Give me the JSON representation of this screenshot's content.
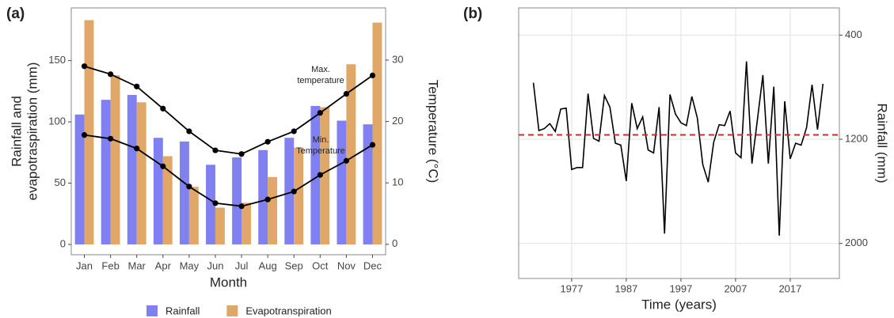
{
  "chart_data": [
    {
      "type": "bar",
      "panel": "(a)",
      "xlabel": "Month",
      "ylabel": [
        "Rainfall and",
        "evapotraspiration (mm)"
      ],
      "y2label": "Temperature (°C)",
      "categories": [
        "Jan",
        "Feb",
        "Mar",
        "Apr",
        "May",
        "Jun",
        "Jul",
        "Aug",
        "Sep",
        "Oct",
        "Nov",
        "Dec"
      ],
      "series": [
        {
          "name": "Rainfall",
          "color": "#8080f0",
          "values": [
            106,
            118,
            122,
            87,
            84,
            65,
            71,
            77,
            87,
            113,
            101,
            98
          ]
        },
        {
          "name": "Evapotranspiration",
          "color": "#e0a868",
          "values": [
            183,
            138,
            116,
            72,
            47,
            30,
            34,
            55,
            79,
            112,
            147,
            181
          ]
        },
        {
          "type": "line",
          "axis": "y2",
          "color": "#000000",
          "values": [
            29.0,
            27.7,
            25.7,
            22.1,
            18.4,
            15.3,
            14.7,
            16.7,
            18.4,
            21.4,
            24.5,
            27.5
          ]
        },
        {
          "type": "line",
          "axis": "y2",
          "color": "#000000",
          "values": [
            17.8,
            17.2,
            15.6,
            12.7,
            9.4,
            6.7,
            6.2,
            7.3,
            8.6,
            11.3,
            13.6,
            16.2
          ]
        }
      ],
      "annotations": [
        [
          "Max.",
          "temperature"
        ],
        [
          "Min.",
          "Temperature"
        ]
      ],
      "ylim": [
        -8.4,
        193
      ],
      "yticks": [
        0,
        50,
        100,
        150
      ],
      "y2lim": [
        -1.7,
        38.5
      ],
      "y2ticks": [
        0,
        10,
        20,
        30
      ],
      "legend": "bottom"
    },
    {
      "type": "line",
      "panel": "(b)",
      "xlabel": "Time (years)",
      "ylabel": "Rainfall (mm)",
      "x": [
        1970,
        1971,
        1972,
        1973,
        1974,
        1975,
        1976,
        1977,
        1978,
        1979,
        1980,
        1981,
        1982,
        1983,
        1984,
        1985,
        1986,
        1987,
        1988,
        1989,
        1990,
        1991,
        1992,
        1993,
        1994,
        1995,
        1996,
        1997,
        1998,
        1999,
        2000,
        2001,
        2002,
        2003,
        2004,
        2005,
        2006,
        2007,
        2008,
        2009,
        2010,
        2011,
        2012,
        2013,
        2014,
        2015,
        2016,
        2017,
        2018,
        2019,
        2020,
        2021,
        2022,
        2023
      ],
      "values": [
        766,
        1133,
        1118,
        1080,
        1140,
        968,
        961,
        1432,
        1417,
        1417,
        849,
        1193,
        1215,
        864,
        953,
        1230,
        1245,
        1521,
        923,
        1118,
        1028,
        1282,
        1305,
        953,
        1925,
        856,
        1006,
        1073,
        1095,
        871,
        1036,
        1394,
        1529,
        1222,
        1088,
        1095,
        983,
        1305,
        1342,
        602,
        1387,
        1050,
        707,
        1387,
        796,
        1940,
        908,
        1350,
        1230,
        1245,
        1110,
        781,
        1125,
        774
      ],
      "color": "#000000",
      "reference_line": 1166,
      "reference_color": "#d42a2a",
      "xlim": [
        1967.3,
        2026
      ],
      "xticks": [
        1977,
        1987,
        1997,
        2007,
        2017
      ],
      "ylim": [
        191,
        2269
      ],
      "y_reversed": true,
      "yticks": [
        400,
        1200,
        2000
      ],
      "grid": true
    }
  ]
}
